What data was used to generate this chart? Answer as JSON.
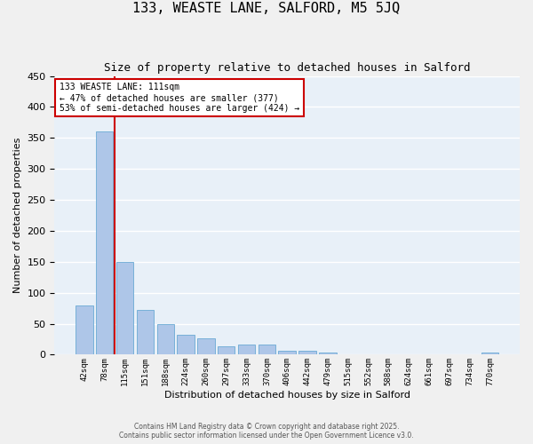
{
  "title1": "133, WEASTE LANE, SALFORD, M5 5JQ",
  "title2": "Size of property relative to detached houses in Salford",
  "xlabel": "Distribution of detached houses by size in Salford",
  "ylabel": "Number of detached properties",
  "categories": [
    "42sqm",
    "78sqm",
    "115sqm",
    "151sqm",
    "188sqm",
    "224sqm",
    "260sqm",
    "297sqm",
    "333sqm",
    "370sqm",
    "406sqm",
    "442sqm",
    "479sqm",
    "515sqm",
    "552sqm",
    "588sqm",
    "624sqm",
    "661sqm",
    "697sqm",
    "734sqm",
    "770sqm"
  ],
  "values": [
    80,
    360,
    150,
    73,
    49,
    32,
    26,
    13,
    16,
    16,
    6,
    7,
    3,
    1,
    1,
    1,
    1,
    1,
    0,
    1,
    4
  ],
  "bar_color": "#aec6e8",
  "bar_edge_color": "#6aaad4",
  "background_color": "#e8f0f8",
  "grid_color": "#ffffff",
  "vline_color": "#cc0000",
  "annotation_line1": "133 WEASTE LANE: 111sqm",
  "annotation_line2": "← 47% of detached houses are smaller (377)",
  "annotation_line3": "53% of semi-detached houses are larger (424) →",
  "annotation_box_color": "#ffffff",
  "annotation_box_edge": "#cc0000",
  "ylim": [
    0,
    450
  ],
  "yticks": [
    0,
    50,
    100,
    150,
    200,
    250,
    300,
    350,
    400,
    450
  ],
  "footer1": "Contains HM Land Registry data © Crown copyright and database right 2025.",
  "footer2": "Contains public sector information licensed under the Open Government Licence v3.0."
}
